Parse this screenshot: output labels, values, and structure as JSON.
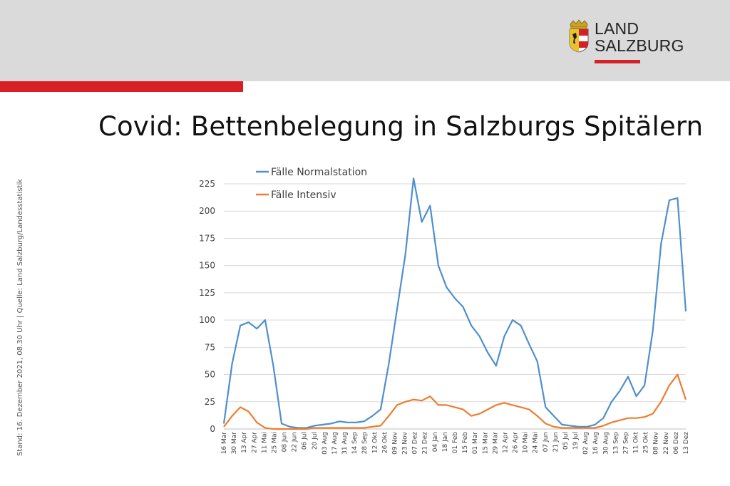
{
  "header": {
    "logo_line1": "LAND",
    "logo_line2": "SALZBURG",
    "brand_red": "#d71f26",
    "band_color": "#dadada"
  },
  "title": "Covid: Bettenbelegung in Salzburgs Spitälern",
  "source_note": "Stand: 16. Dezember 2021, 08.30 Uhr  |  Quelle: Land Salzburg/Landesstatistik",
  "chart_data": {
    "type": "line",
    "title": "Covid: Bettenbelegung in Salzburgs Spitälern",
    "xlabel": "",
    "ylabel": "",
    "ylim": [
      0,
      225
    ],
    "y_ticks": [
      0,
      25,
      50,
      75,
      100,
      125,
      150,
      175,
      200,
      225
    ],
    "grid": true,
    "legend": "top-left",
    "x_ticks": [
      "16 Mar",
      "30 Mar",
      "13 Apr",
      "27 Apr",
      "11 Mai",
      "25 Mai",
      "08 Jun",
      "22 Jun",
      "06 Jul",
      "20 Jul",
      "03 Aug",
      "17 Aug",
      "31 Aug",
      "14 Sep",
      "28 Sep",
      "12 Okt",
      "26 Okt",
      "09 Nov",
      "23 Nov",
      "07 Dez",
      "21 Dez",
      "04 Jan",
      "18 Jan",
      "01 Feb",
      "15 Feb",
      "01 Mar",
      "15 Mar",
      "29 Mar",
      "12 Apr",
      "26 Apr",
      "10 Mai",
      "24 Mai",
      "07 Jun",
      "21 Jun",
      "05 Jul",
      "19 Jul",
      "02 Aug",
      "16 Aug",
      "30 Aug",
      "13 Sep",
      "27 Sep",
      "11 Okt",
      "25 Okt",
      "08 Nov",
      "22 Nov",
      "06 Dez",
      "13 Dez"
    ],
    "series": [
      {
        "name": "Fälle Normalstation",
        "color": "#4f8fcc",
        "values": [
          5,
          60,
          95,
          98,
          92,
          100,
          58,
          5,
          2,
          1,
          1,
          3,
          4,
          5,
          7,
          6,
          6,
          7,
          12,
          18,
          60,
          110,
          160,
          230,
          190,
          205,
          150,
          130,
          120,
          112,
          95,
          85,
          70,
          58,
          85,
          100,
          95,
          78,
          62,
          20,
          12,
          4,
          3,
          2,
          2,
          4,
          10,
          25,
          35,
          48,
          30,
          40,
          90,
          170,
          210,
          212,
          108
        ]
      },
      {
        "name": "Fälle Intensiv",
        "color": "#ed7d31",
        "values": [
          2,
          12,
          20,
          16,
          6,
          1,
          0,
          0,
          0,
          0,
          0,
          1,
          1,
          1,
          1,
          1,
          1,
          1,
          2,
          3,
          12,
          22,
          25,
          27,
          26,
          30,
          22,
          22,
          20,
          18,
          12,
          14,
          18,
          22,
          24,
          22,
          20,
          18,
          12,
          5,
          2,
          1,
          1,
          1,
          1,
          1,
          3,
          6,
          8,
          10,
          10,
          11,
          14,
          25,
          40,
          50,
          27
        ]
      }
    ]
  }
}
